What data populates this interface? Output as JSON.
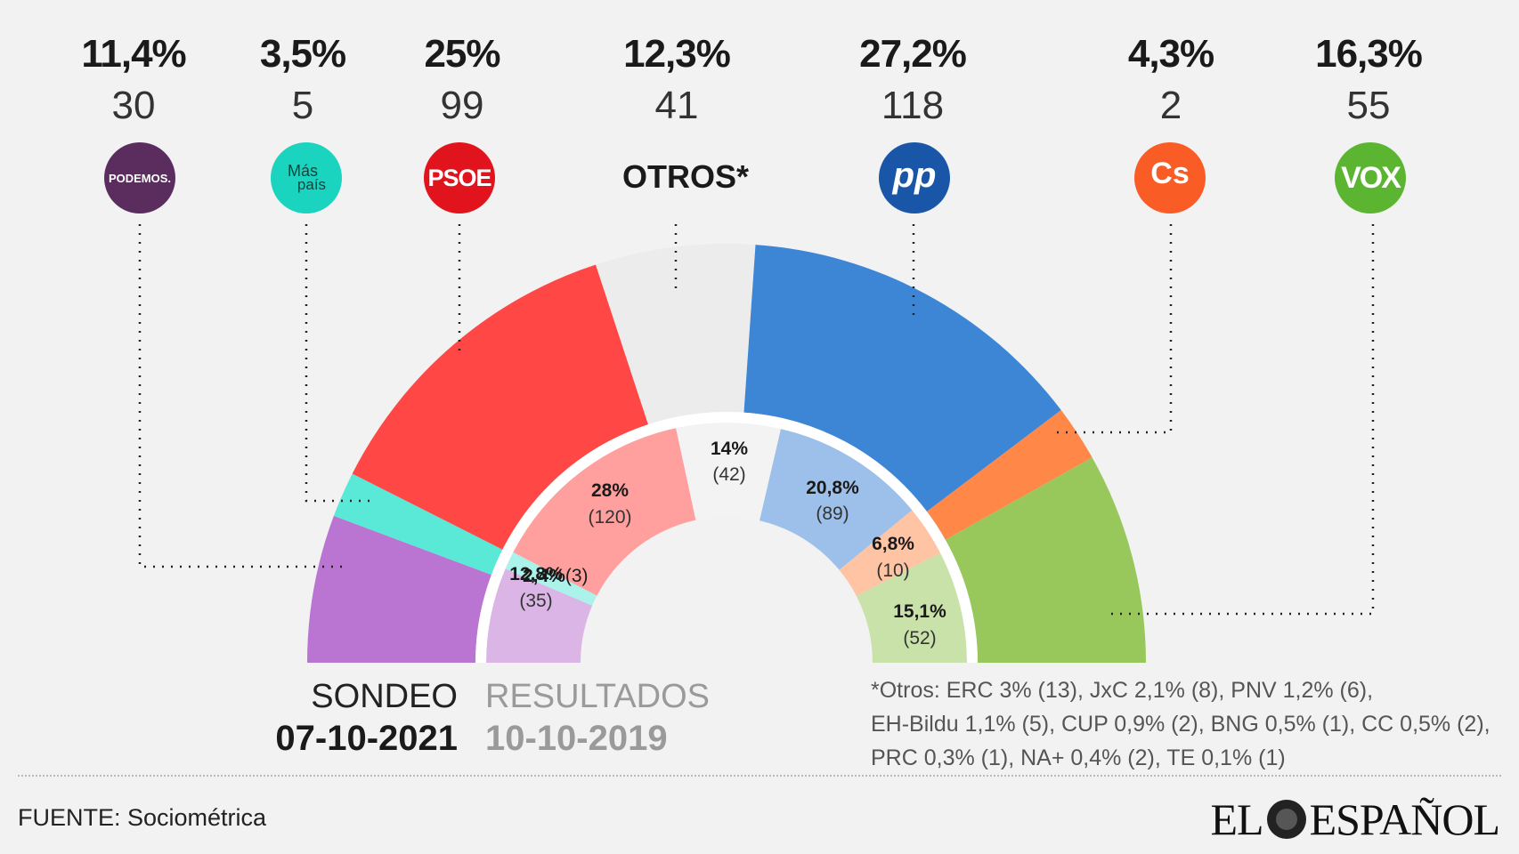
{
  "chart_data": {
    "type": "parliament-semicircle",
    "outer_series": {
      "name": "SONDEO",
      "parties": [
        {
          "party": "PODEMOS",
          "pct": "11,4%",
          "seats": "30",
          "value": 11.4,
          "color": "#b975d1"
        },
        {
          "party": "Más país",
          "pct": "3,5%",
          "seats": "5",
          "value": 3.5,
          "color": "#5ae8d7"
        },
        {
          "party": "PSOE",
          "pct": "25%",
          "seats": "99",
          "value": 25.0,
          "color": "#ff4845"
        },
        {
          "party": "OTROS*",
          "pct": "12,3%",
          "seats": "41",
          "value": 12.3,
          "color": "#ececec"
        },
        {
          "party": "PP",
          "pct": "27,2%",
          "seats": "118",
          "value": 27.2,
          "color": "#3d86d6"
        },
        {
          "party": "Cs",
          "pct": "4,3%",
          "seats": "2",
          "value": 4.3,
          "color": "#ff8747"
        },
        {
          "party": "VOX",
          "pct": "16,3%",
          "seats": "55",
          "value": 16.3,
          "color": "#98c85c"
        }
      ]
    },
    "inner_series": {
      "name": "RESULTADOS",
      "parties": [
        {
          "party": "PODEMOS",
          "pct": "12,8%",
          "seats": "(35)",
          "value": 12.8,
          "color": "#dab5e5"
        },
        {
          "party": "Más país",
          "pct": "2,4%",
          "seats": "(3)",
          "value": 2.4,
          "color": "#aaf2ea"
        },
        {
          "party": "PSOE",
          "pct": "28%",
          "seats": "(120)",
          "value": 28.0,
          "color": "#ffa09e"
        },
        {
          "party": "OTROS*",
          "pct": "14%",
          "seats": "(42)",
          "value": 14.0,
          "color": "#f3f3f3"
        },
        {
          "party": "PP",
          "pct": "20,8%",
          "seats": "(89)",
          "value": 20.8,
          "color": "#9dc0ea"
        },
        {
          "party": "Cs",
          "pct": "6,8%",
          "seats": "(10)",
          "value": 6.8,
          "color": "#ffc4a4"
        },
        {
          "party": "VOX",
          "pct": "15,1%",
          "seats": "(52)",
          "value": 15.1,
          "color": "#c9e2a9"
        }
      ]
    }
  },
  "logos": {
    "podemos": "PODEMOS.",
    "maspais_top": "Más",
    "maspais_bottom": "país",
    "psoe": "PSOE",
    "pp": "pp",
    "cs": "Cs",
    "vox": "VOX"
  },
  "otros_label": "OTROS*",
  "sondeo": {
    "title": "SONDEO",
    "date": "07-10-2021"
  },
  "resultados": {
    "title": "RESULTADOS",
    "date": "10-10-2019"
  },
  "otros_note": [
    "*Otros: ERC 3% (13), JxC 2,1% (8), PNV 1,2% (6),",
    "EH-Bildu 1,1% (5), CUP 0,9% (2), BNG 0,5% (1), CC 0,5% (2),",
    "PRC 0,3% (1), NA+ 0,4% (2), TE 0,1% (1)"
  ],
  "source": "FUENTE: Sociométrica",
  "brand": {
    "left": "EL",
    "right": "ESPAÑOL"
  },
  "colors": {
    "podemos": "#5a2d5e",
    "maspais": "#1ad4c0",
    "psoe": "#e1141d",
    "pp": "#1a56a8",
    "cs": "#f95c25",
    "vox": "#5bb531"
  }
}
